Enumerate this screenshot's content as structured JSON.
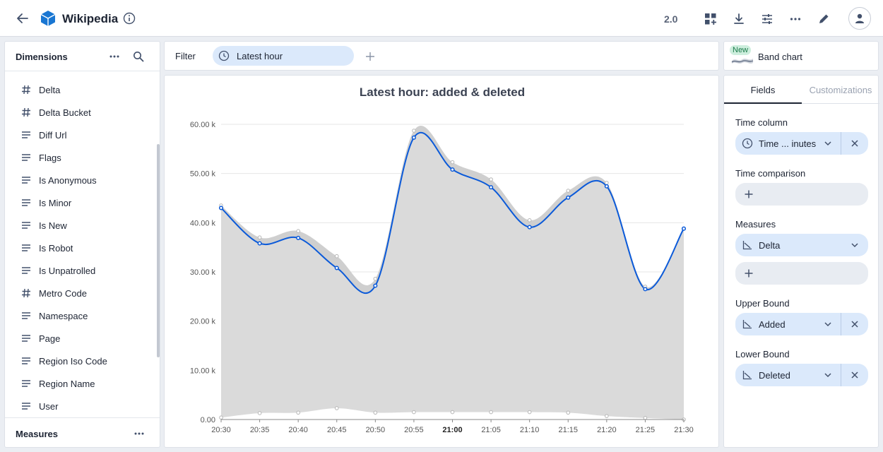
{
  "header": {
    "title": "Wikipedia",
    "version": "2.0"
  },
  "dimensions_panel": {
    "title": "Dimensions",
    "items": [
      {
        "label": "Delta",
        "icon": "hash-icon"
      },
      {
        "label": "Delta Bucket",
        "icon": "hash-icon"
      },
      {
        "label": "Diff Url",
        "icon": "text-lines-icon"
      },
      {
        "label": "Flags",
        "icon": "text-lines-icon"
      },
      {
        "label": "Is Anonymous",
        "icon": "text-lines-icon"
      },
      {
        "label": "Is Minor",
        "icon": "text-lines-icon"
      },
      {
        "label": "Is New",
        "icon": "text-lines-icon"
      },
      {
        "label": "Is Robot",
        "icon": "text-lines-icon"
      },
      {
        "label": "Is Unpatrolled",
        "icon": "text-lines-icon"
      },
      {
        "label": "Metro Code",
        "icon": "hash-icon"
      },
      {
        "label": "Namespace",
        "icon": "text-lines-icon"
      },
      {
        "label": "Page",
        "icon": "text-lines-icon"
      },
      {
        "label": "Region Iso Code",
        "icon": "text-lines-icon"
      },
      {
        "label": "Region Name",
        "icon": "text-lines-icon"
      },
      {
        "label": "User",
        "icon": "text-lines-icon"
      }
    ],
    "measures_title": "Measures"
  },
  "filter_bar": {
    "label": "Filter",
    "chip": "Latest hour"
  },
  "visualization": {
    "badge": "New",
    "name": "Band chart"
  },
  "right_panel": {
    "tabs": [
      "Fields",
      "Customizations"
    ],
    "active_tab": "Fields",
    "time_column": {
      "label": "Time column",
      "value": "Time ... inutes"
    },
    "time_comparison": {
      "label": "Time comparison"
    },
    "measures": {
      "label": "Measures",
      "value": "Delta"
    },
    "upper_bound": {
      "label": "Upper Bound",
      "value": "Added"
    },
    "lower_bound": {
      "label": "Lower Bound",
      "value": "Deleted"
    }
  },
  "colors": {
    "accent": "#1565c0",
    "line": "#0b5ad9",
    "band": "#dadada",
    "pill": "#dbe9fb"
  },
  "chart_data": {
    "type": "area",
    "title": "Latest hour: added & deleted",
    "x": [
      "20:30",
      "20:35",
      "20:40",
      "20:45",
      "20:50",
      "20:55",
      "21:00",
      "21:05",
      "21:10",
      "21:15",
      "21:20",
      "21:25",
      "21:30"
    ],
    "bold_tick": "21:00",
    "y_ticks": [
      "0.00",
      "10.00 k",
      "20.00 k",
      "30.00 k",
      "40.00 k",
      "50.00 k",
      "60.00 k"
    ],
    "ylim": [
      0,
      60000
    ],
    "grid": true,
    "series": [
      {
        "values": [
          43000,
          35800,
          36900,
          30800,
          27200,
          57300,
          50800,
          47200,
          39100,
          45100,
          47400,
          26500,
          38800
        ]
      },
      {
        "values": [
          43500,
          37000,
          38300,
          33200,
          28600,
          58700,
          52300,
          48800,
          40500,
          46500,
          48100,
          27000,
          38800
        ]
      },
      {
        "values": [
          400,
          1300,
          1400,
          2300,
          1400,
          1500,
          1500,
          1500,
          1500,
          1400,
          700,
          300,
          0
        ]
      }
    ]
  }
}
